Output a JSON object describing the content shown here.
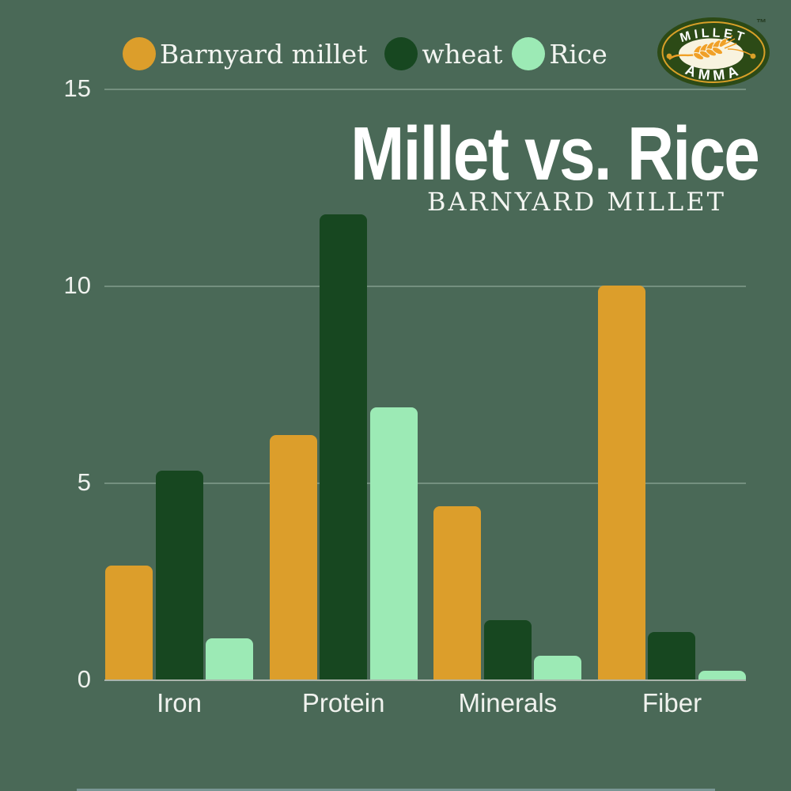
{
  "brand": {
    "logo_top": "MILLET",
    "logo_bottom": "AMMA",
    "trademark": "™"
  },
  "title": "Millet vs. Rice",
  "subtitle": "BARNYARD MILLET",
  "legend": [
    {
      "label": "Barnyard millet",
      "color": "#dc9e2b"
    },
    {
      "label": "wheat",
      "color": "#174720"
    },
    {
      "label": "Rice",
      "color": "#9ceab5"
    }
  ],
  "chart_data": {
    "type": "bar",
    "categories": [
      "Iron",
      "Protein",
      "Minerals",
      "Fiber"
    ],
    "series": [
      {
        "name": "Barnyard millet",
        "color": "#dc9e2b",
        "values": [
          2.9,
          6.2,
          4.4,
          10
        ]
      },
      {
        "name": "wheat",
        "color": "#174720",
        "values": [
          5.3,
          11.8,
          1.5,
          1.2
        ]
      },
      {
        "name": "Rice",
        "color": "#9ceab5",
        "values": [
          1.05,
          6.9,
          0.6,
          0.22
        ]
      }
    ],
    "ylim": [
      0,
      15
    ],
    "yticks": [
      0,
      5,
      10,
      15
    ],
    "grid": true,
    "legend_position": "top"
  },
  "colors": {
    "background": "#4a6957",
    "gridline": "#74907f",
    "baseline": "#aab4ac",
    "text": "#f2f4f0"
  }
}
